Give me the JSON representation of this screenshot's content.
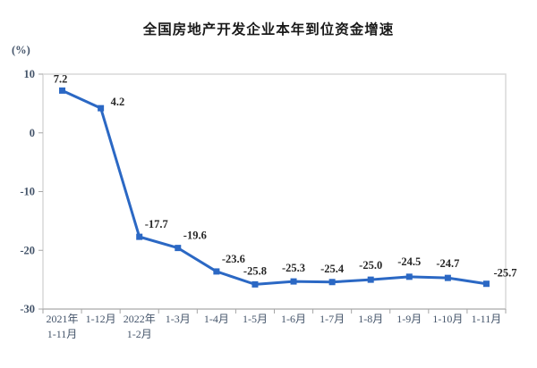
{
  "chart_data": {
    "type": "line",
    "title": "全国房地产开发企业本年到位资金增速",
    "unit": "(%)",
    "xlabel": "",
    "ylabel": "(%)",
    "ylim": [
      -30,
      10
    ],
    "yticks": [
      10,
      0,
      -10,
      -20,
      -30
    ],
    "grid": false,
    "legend": "none",
    "categories": [
      [
        "2021年",
        "1-11月"
      ],
      [
        "1-12月"
      ],
      [
        "2022年",
        "1-2月"
      ],
      [
        "1-3月"
      ],
      [
        "1-4月"
      ],
      [
        "1-5月"
      ],
      [
        "1-6月"
      ],
      [
        "1-7月"
      ],
      [
        "1-8月"
      ],
      [
        "1-9月"
      ],
      [
        "1-10月"
      ],
      [
        "1-11月"
      ]
    ],
    "values": [
      7.2,
      4.2,
      -17.7,
      -19.6,
      -23.6,
      -25.8,
      -25.3,
      -25.4,
      -25.0,
      -24.5,
      -24.7,
      -25.7
    ],
    "value_labels": [
      "7.2",
      "4.2",
      "-17.7",
      "-19.6",
      "-23.6",
      "-25.8",
      "-25.3",
      "-25.4",
      "-25.0",
      "-24.5",
      "-24.7",
      "-25.7"
    ],
    "colors": {
      "line": "#2B68C4",
      "marker": "#2B68C4",
      "plot_border": "#D9D9D9",
      "axis_line": "#A6A6A6",
      "tick": "#A6A6A6",
      "axis_label": "#44546A",
      "data_label": "#262626",
      "title": "#1A1A1A"
    }
  }
}
